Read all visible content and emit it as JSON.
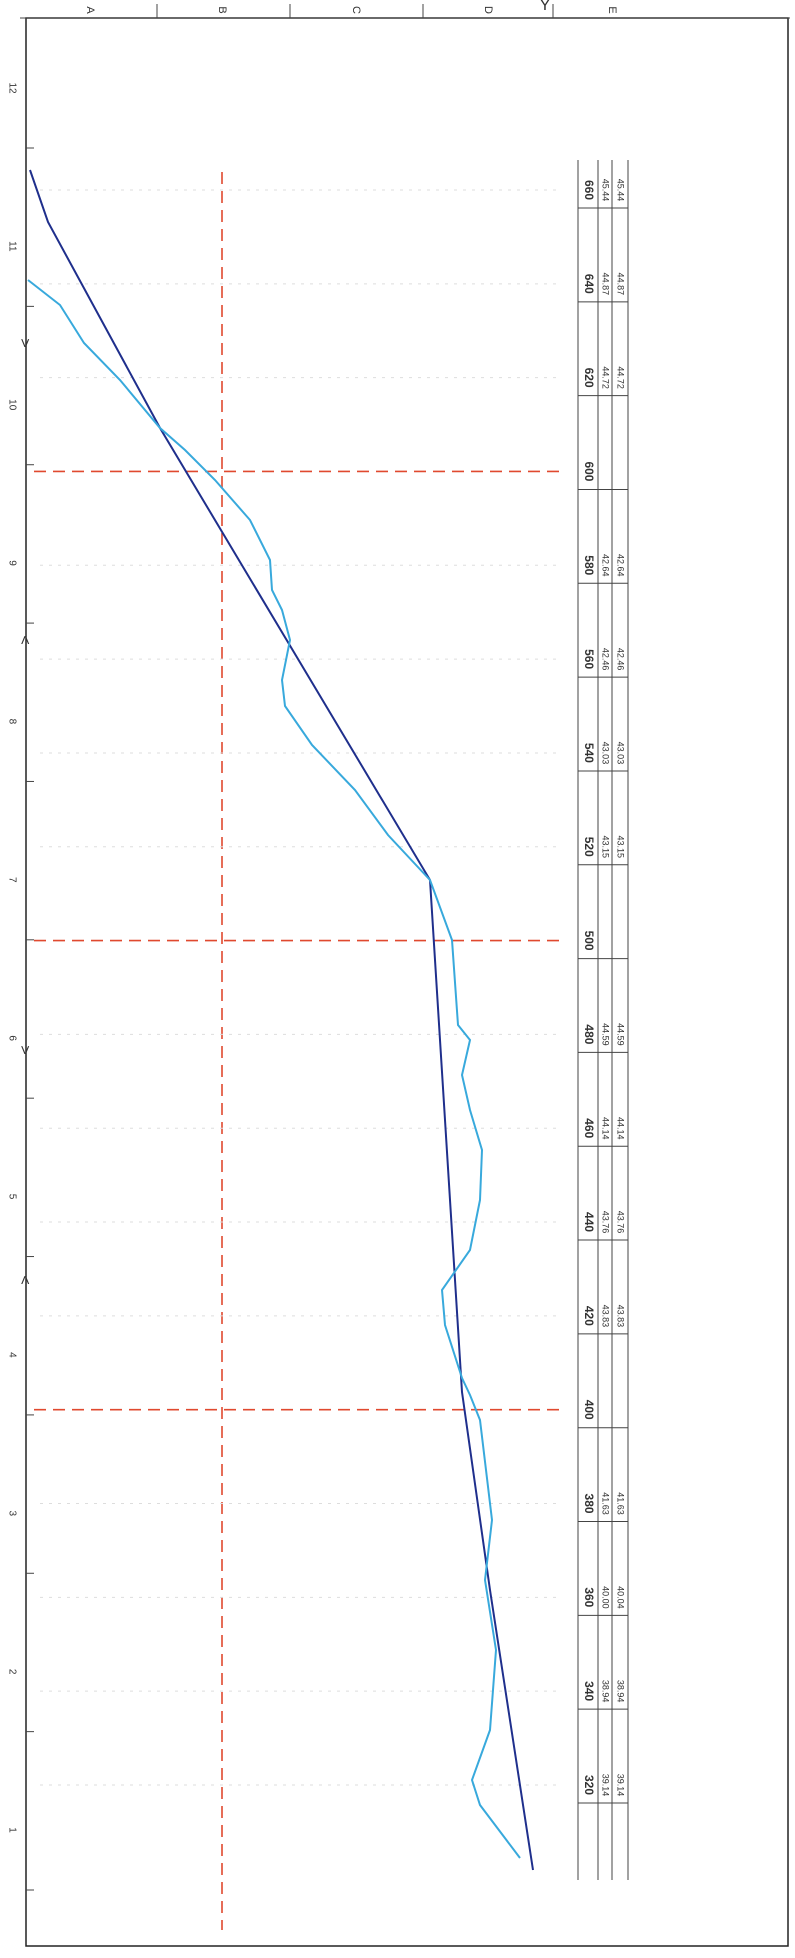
{
  "grid": {
    "columns": [
      "A",
      "B",
      "C",
      "D",
      "E"
    ],
    "rows": [
      "12",
      "11",
      "10",
      "9",
      "8",
      "7",
      "6",
      "5",
      "4",
      "3",
      "2",
      "1"
    ]
  },
  "profile": {
    "stations": [
      {
        "chainage": "660",
        "design": "45.44",
        "ground": "45.44"
      },
      {
        "chainage": "640",
        "design": "44.87",
        "ground": "44.87"
      },
      {
        "chainage": "620",
        "design": "44.72",
        "ground": "44.72"
      },
      {
        "chainage": "600"
      },
      {
        "chainage": "580",
        "design": "42.64",
        "ground": "42.64"
      },
      {
        "chainage": "560",
        "design": "42.46",
        "ground": "42.46"
      },
      {
        "chainage": "540",
        "design": "43.03",
        "ground": "43.03"
      },
      {
        "chainage": "520",
        "design": "43.15",
        "ground": "43.15"
      },
      {
        "chainage": "500"
      },
      {
        "chainage": "480",
        "design": "44.59",
        "ground": "44.59"
      },
      {
        "chainage": "460",
        "design": "44.14",
        "ground": "44.14"
      },
      {
        "chainage": "440",
        "design": "43.76",
        "ground": "43.76"
      },
      {
        "chainage": "420",
        "design": "43.83",
        "ground": "43.83"
      },
      {
        "chainage": "400"
      },
      {
        "chainage": "380",
        "design": "41.63",
        "ground": "41.63"
      },
      {
        "chainage": "360",
        "design": "40.00",
        "ground": "40.04"
      },
      {
        "chainage": "340",
        "design": "38.94",
        "ground": "38.94"
      },
      {
        "chainage": "320",
        "design": "39.14",
        "ground": "39.14"
      }
    ]
  }
}
